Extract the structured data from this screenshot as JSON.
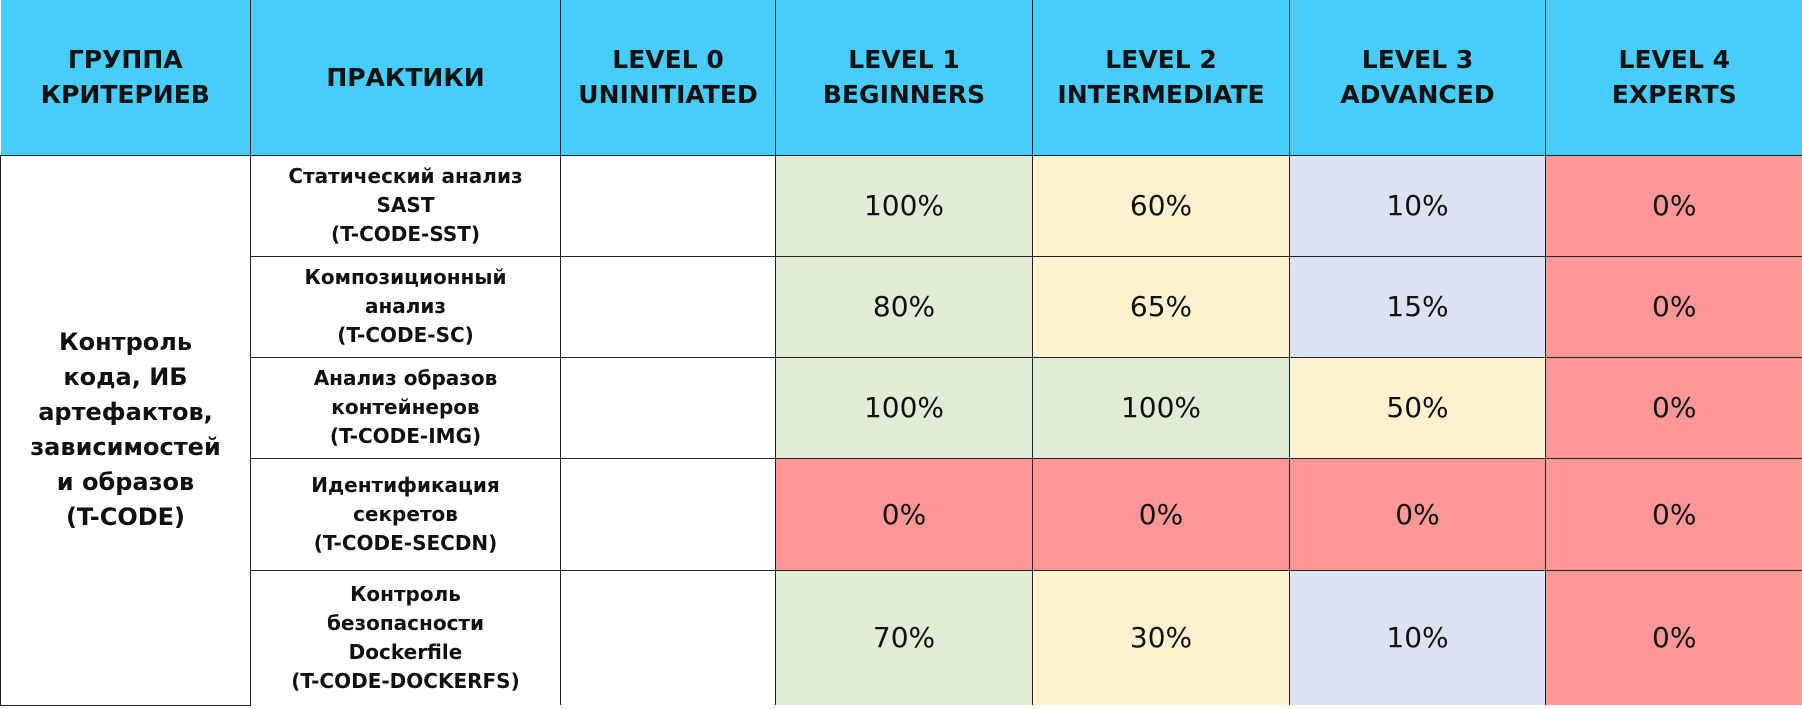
{
  "headers": [
    [
      "ГРУППА",
      "КРИТЕРИЕВ"
    ],
    [
      "ПРАКТИКИ"
    ],
    [
      "LEVEL 0",
      "UNINITIATED"
    ],
    [
      "LEVEL 1",
      "BEGINNERS"
    ],
    [
      "LEVEL 2",
      "INTERMEDIATE"
    ],
    [
      "LEVEL 3",
      "ADVANCED"
    ],
    [
      "LEVEL 4",
      "EXPERTS"
    ]
  ],
  "group": [
    "Контроль",
    "кода, ИБ",
    "артефактов,",
    "зависимостей",
    "и образов",
    "(T-CODE)"
  ],
  "rows": [
    {
      "practice": [
        "Статический анализ",
        "SAST",
        "(T-CODE-SST)"
      ],
      "level0": "",
      "level1": "100%",
      "level2": "60%",
      "level3": "10%",
      "level4": "0%"
    },
    {
      "practice": [
        "Композиционный",
        "анализ",
        "(T-CODE-SC)"
      ],
      "level0": "",
      "level1": "80%",
      "level2": "65%",
      "level3": "15%",
      "level4": "0%"
    },
    {
      "practice": [
        "Анализ образов",
        "контейнеров",
        "(T-CODE-IMG)"
      ],
      "level0": "",
      "level1": "100%",
      "level2": "100%",
      "level3": "50%",
      "level4": "0%"
    },
    {
      "practice": [
        "Идентификация",
        "секретов",
        "(T-CODE-SECDN)"
      ],
      "level0": "",
      "level1": "0%",
      "level2": "0%",
      "level3": "0%",
      "level4": "0%"
    },
    {
      "practice": [
        "Контроль",
        "безопасности",
        "Dockerfile",
        "(T-CODE-DOCKERFS)"
      ],
      "level0": "",
      "level1": "70%",
      "level2": "30%",
      "level3": "10%",
      "level4": "0%"
    }
  ],
  "colors": {
    "header": "#46cdfb",
    "green": "#e1ecd7",
    "yellow": "#fdf2d0",
    "blue": "#dbe2f2",
    "red": "#ff9797"
  }
}
